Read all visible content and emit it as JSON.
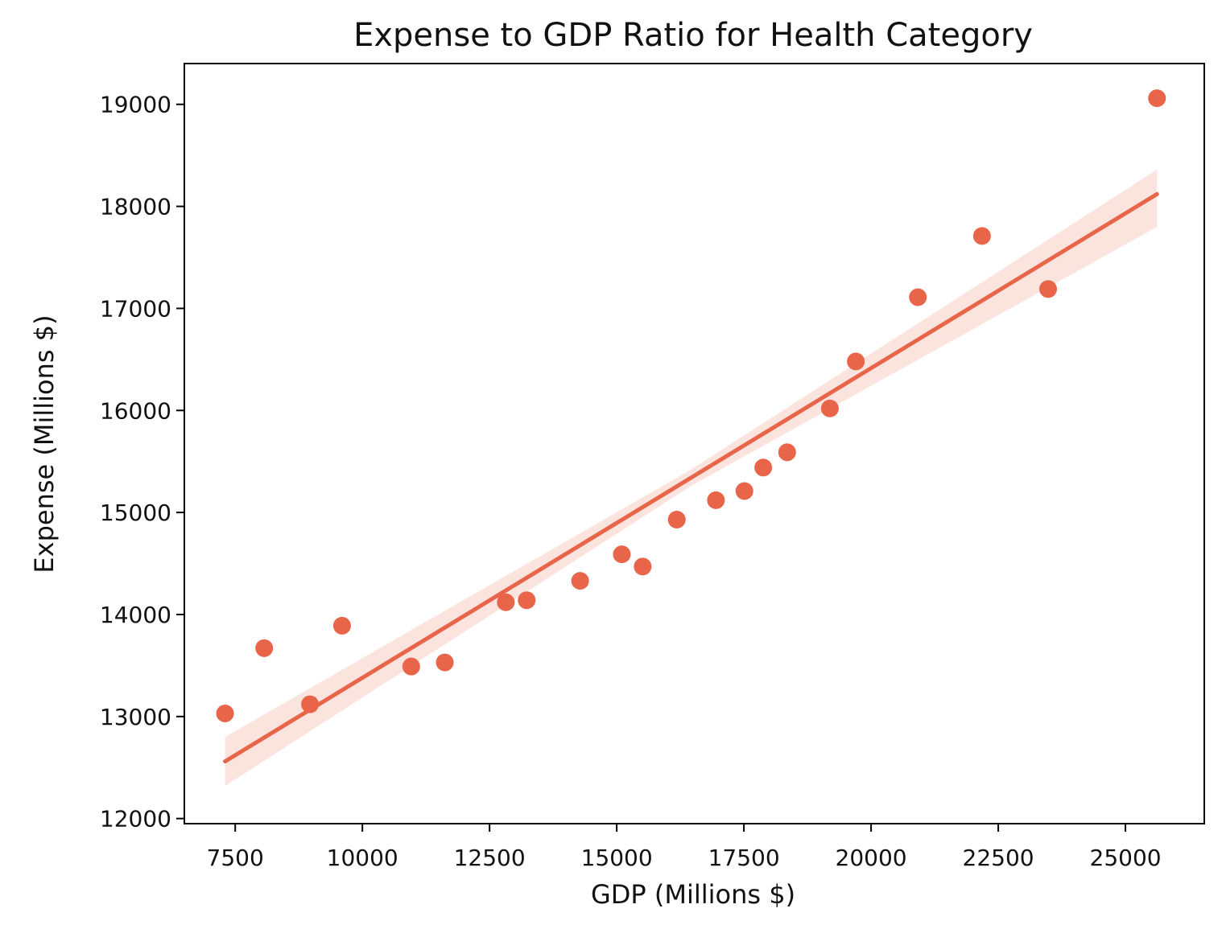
{
  "chart_data": {
    "type": "scatter",
    "title": "Expense to GDP Ratio for Health Category",
    "xlabel": "GDP (Millions $)",
    "ylabel": "Expense (Millions $)",
    "xlim": [
      6500,
      26550
    ],
    "ylim": [
      11950,
      19400
    ],
    "x_ticks": [
      7500,
      10000,
      12500,
      15000,
      17500,
      20000,
      22500,
      25000
    ],
    "y_ticks": [
      12000,
      13000,
      14000,
      15000,
      16000,
      17000,
      18000,
      19000
    ],
    "grid": false,
    "color": "#e8654a",
    "points": [
      {
        "x": 7300,
        "y": 13030
      },
      {
        "x": 8070,
        "y": 13670
      },
      {
        "x": 8970,
        "y": 13120
      },
      {
        "x": 9600,
        "y": 13890
      },
      {
        "x": 10960,
        "y": 13490
      },
      {
        "x": 11620,
        "y": 13530
      },
      {
        "x": 12820,
        "y": 14120
      },
      {
        "x": 13230,
        "y": 14140
      },
      {
        "x": 14280,
        "y": 14330
      },
      {
        "x": 15100,
        "y": 14590
      },
      {
        "x": 15510,
        "y": 14470
      },
      {
        "x": 16180,
        "y": 14930
      },
      {
        "x": 16950,
        "y": 15120
      },
      {
        "x": 17510,
        "y": 15210
      },
      {
        "x": 17880,
        "y": 15440
      },
      {
        "x": 18350,
        "y": 15590
      },
      {
        "x": 19190,
        "y": 16020
      },
      {
        "x": 19700,
        "y": 16480
      },
      {
        "x": 20920,
        "y": 17110
      },
      {
        "x": 22180,
        "y": 17710
      },
      {
        "x": 23480,
        "y": 17190
      },
      {
        "x": 25620,
        "y": 19060
      }
    ],
    "regression": {
      "x": [
        7300,
        25620
      ],
      "y": [
        12560,
        18120
      ],
      "ci_upper": [
        12800,
        18360
      ],
      "ci_lower": [
        12320,
        17800
      ],
      "ci_mid_x": 16460,
      "ci_mid_upper": 15420,
      "ci_mid_lower": 15260
    }
  }
}
